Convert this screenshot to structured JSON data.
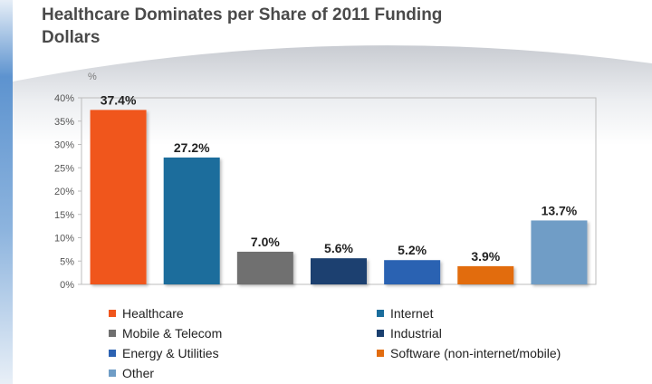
{
  "title_lines": [
    "Healthcare Dominates per Share of 2011 Funding",
    "Dollars"
  ],
  "chart_data": {
    "type": "bar",
    "title": "Healthcare Dominates per Share of 2011 Funding Dollars",
    "unit_label": "%",
    "categories": [
      "Healthcare",
      "Internet",
      "Mobile & Telecom",
      "Industrial",
      "Energy & Utilities",
      "Software (non-internet/mobile)",
      "Other"
    ],
    "values": [
      37.4,
      27.2,
      7.0,
      5.6,
      5.2,
      3.9,
      13.7
    ],
    "data_labels": [
      "37.4%",
      "27.2%",
      "7.0%",
      "5.6%",
      "5.2%",
      "3.9%",
      "13.7%"
    ],
    "colors": [
      "#f0561d",
      "#1a6d9c",
      "#6f6f6f",
      "#1a3f6f",
      "#2c62b2",
      "#e26c0f",
      "#6f9dc6"
    ],
    "ylim": [
      0,
      40
    ],
    "yticks": [
      0,
      5,
      10,
      15,
      20,
      25,
      30,
      35,
      40
    ],
    "ytick_labels": [
      "0%",
      "5%",
      "10%",
      "15%",
      "20%",
      "25%",
      "30%",
      "35%",
      "40%"
    ],
    "grid": false,
    "legend_placement": "bottom"
  }
}
